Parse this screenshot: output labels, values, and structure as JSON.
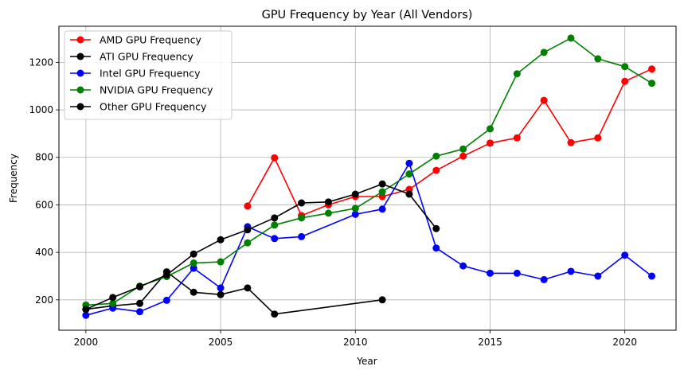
{
  "chart_data": {
    "type": "line",
    "title": "GPU Frequency by Year (All Vendors)",
    "xlabel": "Year",
    "ylabel": "Frequency",
    "xlim": [
      1999.0,
      2021.9
    ],
    "ylim": [
      72,
      1352
    ],
    "xticks": [
      2000,
      2005,
      2010,
      2015,
      2020
    ],
    "yticks": [
      200,
      400,
      600,
      800,
      1000,
      1200
    ],
    "grid": true,
    "legend_position": "top-left",
    "series": [
      {
        "name": "AMD GPU Frequency",
        "color": "#ff0000",
        "x": [
          2006,
          2007,
          2008,
          2009,
          2010,
          2011,
          2012,
          2013,
          2014,
          2015,
          2016,
          2017,
          2018,
          2019,
          2020,
          2021
        ],
        "y": [
          595,
          798,
          555,
          600,
          635,
          635,
          665,
          745,
          805,
          860,
          882,
          1040,
          862,
          882,
          1120,
          1172
        ]
      },
      {
        "name": "ATI GPU Frequency",
        "color": "#000000",
        "x": [
          2000,
          2001,
          2002,
          2003,
          2004,
          2005,
          2006,
          2007,
          2011
        ],
        "y": [
          160,
          175,
          185,
          318,
          232,
          222,
          250,
          140,
          200
        ]
      },
      {
        "name": "Intel GPU Frequency",
        "color": "#0000ff",
        "x": [
          2000,
          2001,
          2002,
          2003,
          2004,
          2005,
          2006,
          2007,
          2008,
          2010,
          2011,
          2012,
          2013,
          2014,
          2015,
          2016,
          2017,
          2018,
          2019,
          2020,
          2021
        ],
        "y": [
          135,
          165,
          150,
          198,
          333,
          250,
          508,
          458,
          466,
          560,
          582,
          775,
          418,
          343,
          312,
          312,
          285,
          320,
          300,
          388,
          300
        ]
      },
      {
        "name": "NVIDIA GPU Frequency",
        "color": "#008000",
        "x": [
          2000,
          2001,
          2002,
          2003,
          2004,
          2005,
          2006,
          2007,
          2008,
          2009,
          2010,
          2011,
          2012,
          2013,
          2014,
          2015,
          2016,
          2017,
          2018,
          2019,
          2020,
          2021
        ],
        "y": [
          178,
          185,
          258,
          298,
          355,
          360,
          440,
          515,
          545,
          565,
          585,
          655,
          730,
          805,
          835,
          920,
          1152,
          1242,
          1302,
          1215,
          1182,
          1112
        ]
      },
      {
        "name": "Other GPU Frequency",
        "color": "#000000",
        "x": [
          2000,
          2001,
          2002,
          2003,
          2004,
          2005,
          2006,
          2007,
          2008,
          2009,
          2010,
          2011,
          2012,
          2013
        ],
        "y": [
          160,
          210,
          255,
          305,
          393,
          453,
          495,
          545,
          608,
          612,
          645,
          688,
          645,
          500
        ]
      }
    ]
  }
}
